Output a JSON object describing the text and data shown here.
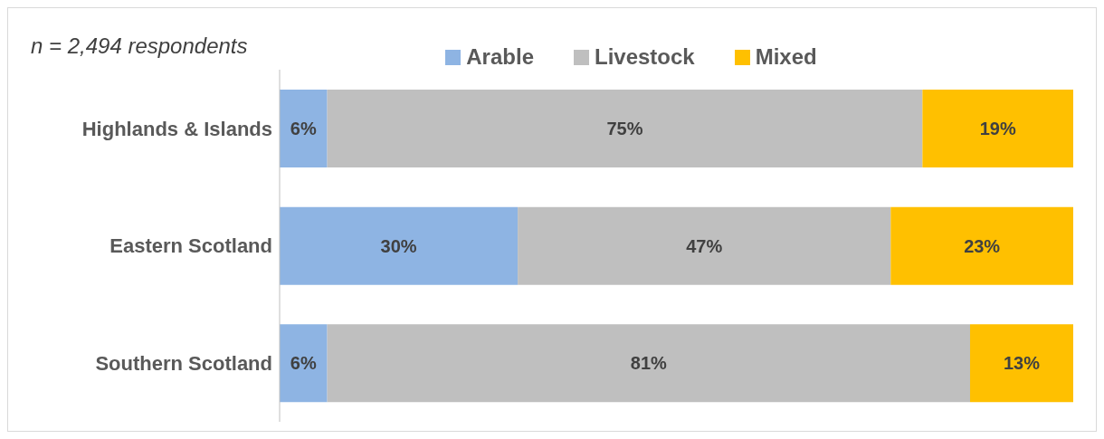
{
  "chart_data": {
    "type": "bar",
    "orientation": "horizontal",
    "stacked": true,
    "categories": [
      "Highlands & Islands",
      "Eastern Scotland",
      "Southern Scotland"
    ],
    "series": [
      {
        "name": "Arable",
        "color": "#8eb4e3",
        "values": [
          6,
          30,
          6
        ],
        "value_labels": [
          "6%",
          "30%",
          "6%"
        ]
      },
      {
        "name": "Livestock",
        "color": "#bfbfbf",
        "values": [
          75,
          47,
          81
        ],
        "value_labels": [
          "75%",
          "47%",
          "81%"
        ]
      },
      {
        "name": "Mixed",
        "color": "#ffc000",
        "values": [
          19,
          23,
          13
        ],
        "value_labels": [
          "19%",
          "23%",
          "13%"
        ]
      }
    ],
    "legend": "top",
    "tick_labels": "y",
    "annotations": [
      "n = 2,494 respondents"
    ]
  }
}
